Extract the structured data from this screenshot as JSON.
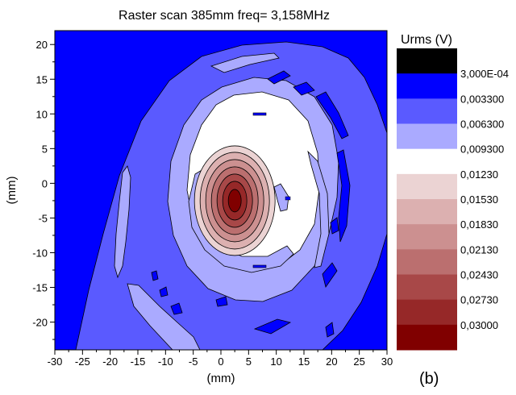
{
  "chart_data": {
    "type": "heatmap",
    "title": "Raster scan  385mm  freq= 3,158MHz",
    "xlabel": "(mm)",
    "ylabel": "(mm)",
    "xlim": [
      -30,
      30
    ],
    "ylim": [
      -24,
      22
    ],
    "xticks": [
      -30,
      -25,
      -20,
      -15,
      -10,
      -5,
      0,
      5,
      10,
      15,
      20,
      25,
      30
    ],
    "yticks": [
      20,
      15,
      10,
      5,
      0,
      -5,
      -10,
      -15,
      -20
    ],
    "grid": false,
    "legend_position": "right",
    "colorbar": {
      "title": "Urms (V)",
      "levels": [
        {
          "label": "",
          "color": "#000000"
        },
        {
          "label": "3,000E-04",
          "color": "#0000ff"
        },
        {
          "label": "0,003300",
          "color": "#5a5aff"
        },
        {
          "label": "0,006300",
          "color": "#aaaaff"
        },
        {
          "label": "0,009300",
          "color": "#ffffff"
        },
        {
          "label": "0,01230",
          "color": "#ebd3d3"
        },
        {
          "label": "0,01530",
          "color": "#dcb0b0"
        },
        {
          "label": "0,01830",
          "color": "#cc9090"
        },
        {
          "label": "0,02130",
          "color": "#bb6f6f"
        },
        {
          "label": "0,02430",
          "color": "#a84848"
        },
        {
          "label": "0,02730",
          "color": "#962828"
        },
        {
          "label": "0,03000",
          "color": "#800000"
        }
      ]
    },
    "peak": {
      "x": 2.5,
      "y": -2.5
    }
  },
  "panel_label": "(b)"
}
